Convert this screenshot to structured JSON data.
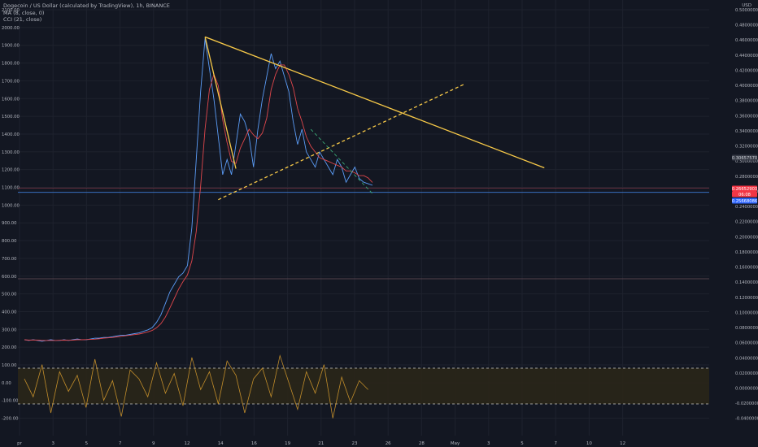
{
  "legend": {
    "symbol_line": "Dogecoin / US Dollar (calculated by TradingView), 1h, BINANCE",
    "ma_line": "MA (8, close, 0)",
    "cci_line": "CCI (21, close)"
  },
  "left_scale": {
    "ticks": [
      "2100.00",
      "2000.00",
      "1900.00",
      "1800.00",
      "1700.00",
      "1600.00",
      "1500.00",
      "1400.00",
      "1300.00",
      "1200.00",
      "1100.00",
      "1000.00",
      "900.00",
      "800.00",
      "700.00",
      "600.00",
      "500.00",
      "400.00",
      "300.00",
      "200.00",
      "100.00",
      "0.00",
      "-100.00",
      "-200.00"
    ]
  },
  "right_scale": {
    "unit": "USD",
    "ticks": [
      "0.50000000",
      "0.48000000",
      "0.46000000",
      "0.44000000",
      "0.42000000",
      "0.40000000",
      "0.38000000",
      "0.36000000",
      "0.34000000",
      "0.32000000",
      "0.30000000",
      "0.28000000",
      "0.26000000",
      "0.24000000",
      "0.22000000",
      "0.20000000",
      "0.18000000",
      "0.16000000",
      "0.14000000",
      "0.12000000",
      "0.10000000",
      "0.08000000",
      "0.06000000",
      "0.04000000",
      "0.02000000",
      "0.00000000",
      "-0.02000000",
      "-0.04000000"
    ],
    "badges": [
      {
        "text": "0.30657570",
        "bg": "#363a45",
        "fg": "#d1d4dc"
      },
      {
        "text": "0.26652903",
        "bg": "#f23645",
        "fg": "#ffffff"
      },
      {
        "text": "06:08",
        "bg": "#f23645",
        "fg": "#ffffff"
      },
      {
        "text": "0.25668086",
        "bg": "#2962ff",
        "fg": "#ffffff"
      }
    ]
  },
  "time_axis": {
    "labels": [
      "pr",
      "3",
      "5",
      "7",
      "9",
      "12",
      "14",
      "16",
      "19",
      "21",
      "23",
      "26",
      "28",
      "May",
      "3",
      "5",
      "7",
      "10",
      "12"
    ]
  },
  "colors": {
    "background": "#131722",
    "grid": "#1e222d",
    "price_line": "#5b9cf6",
    "ma_line": "#e0474c",
    "trendline": "#f7c948",
    "cci_line": "#c18d2b",
    "cci_band": "#2a2618",
    "support": "#3d7bd6",
    "down_dash": "#3aa876"
  },
  "chart_data": {
    "type": "line",
    "price_scale": "right",
    "price_ylim": [
      -0.04,
      0.5
    ],
    "cci_ylim": [
      -200,
      100
    ],
    "cci_bands": [
      100,
      -100
    ],
    "x_labels": [
      "pr",
      "3",
      "5",
      "7",
      "9",
      "12",
      "14",
      "16",
      "19",
      "21",
      "23",
      "26",
      "28",
      "May",
      "3",
      "5",
      "7",
      "10",
      "12"
    ],
    "last_price": 0.26652903,
    "support_level": 0.25668086,
    "resistance_mark": 0.3065757,
    "price_series": {
      "x": [
        0,
        1,
        2,
        3,
        4,
        5,
        6,
        7,
        8,
        9,
        10,
        11,
        12,
        13,
        14,
        15,
        16,
        17,
        18,
        19,
        20,
        21,
        22,
        23,
        24,
        25,
        26,
        27,
        28,
        29,
        30,
        31,
        32,
        33,
        34,
        35,
        36,
        37,
        38,
        39,
        40,
        41,
        42,
        43,
        44,
        45,
        46,
        47,
        48,
        49,
        50,
        51,
        52,
        53,
        54,
        55,
        56,
        57,
        58,
        59,
        60,
        61,
        62,
        63,
        64,
        65,
        66,
        67,
        68,
        69,
        70,
        71,
        72,
        73,
        74,
        75,
        76,
        77,
        78,
        79
      ],
      "y": [
        0.062,
        0.061,
        0.062,
        0.061,
        0.06,
        0.061,
        0.062,
        0.061,
        0.061,
        0.062,
        0.061,
        0.062,
        0.063,
        0.062,
        0.062,
        0.063,
        0.064,
        0.064,
        0.065,
        0.065,
        0.066,
        0.067,
        0.068,
        0.068,
        0.069,
        0.07,
        0.071,
        0.073,
        0.075,
        0.078,
        0.085,
        0.095,
        0.11,
        0.125,
        0.135,
        0.145,
        0.15,
        0.16,
        0.21,
        0.3,
        0.39,
        0.46,
        0.42,
        0.38,
        0.33,
        0.28,
        0.3,
        0.28,
        0.32,
        0.36,
        0.35,
        0.33,
        0.29,
        0.34,
        0.38,
        0.41,
        0.44,
        0.42,
        0.43,
        0.41,
        0.39,
        0.35,
        0.32,
        0.34,
        0.31,
        0.3,
        0.29,
        0.31,
        0.3,
        0.29,
        0.28,
        0.3,
        0.29,
        0.27,
        0.28,
        0.29,
        0.275,
        0.27,
        0.268,
        0.266
      ]
    },
    "cci_series": {
      "x": [
        0,
        2,
        4,
        6,
        8,
        10,
        12,
        14,
        16,
        18,
        20,
        22,
        24,
        26,
        28,
        30,
        32,
        34,
        36,
        38,
        40,
        42,
        44,
        46,
        48,
        50,
        52,
        54,
        56,
        58,
        60,
        62,
        64,
        66,
        68,
        70,
        72,
        74,
        76,
        78
      ],
      "y": [
        40,
        -60,
        120,
        -150,
        80,
        -30,
        60,
        -120,
        150,
        -80,
        30,
        -170,
        90,
        40,
        -60,
        130,
        -40,
        70,
        -110,
        160,
        -20,
        80,
        -100,
        140,
        60,
        -150,
        40,
        100,
        -60,
        170,
        20,
        -130,
        80,
        -40,
        120,
        -180,
        50,
        -90,
        30,
        -20
      ]
    },
    "trendlines": [
      {
        "style": "solid",
        "from": [
          41,
          0.462
        ],
        "to": [
          118,
          0.289
        ]
      },
      {
        "style": "solid",
        "from": [
          41,
          0.462
        ],
        "to": [
          48,
          0.288
        ]
      },
      {
        "style": "dashed",
        "from": [
          44,
          0.247
        ],
        "to": [
          100,
          0.4
        ]
      },
      {
        "style": "dashed",
        "from": [
          65,
          0.34
        ],
        "to": [
          79,
          0.255
        ]
      }
    ]
  }
}
